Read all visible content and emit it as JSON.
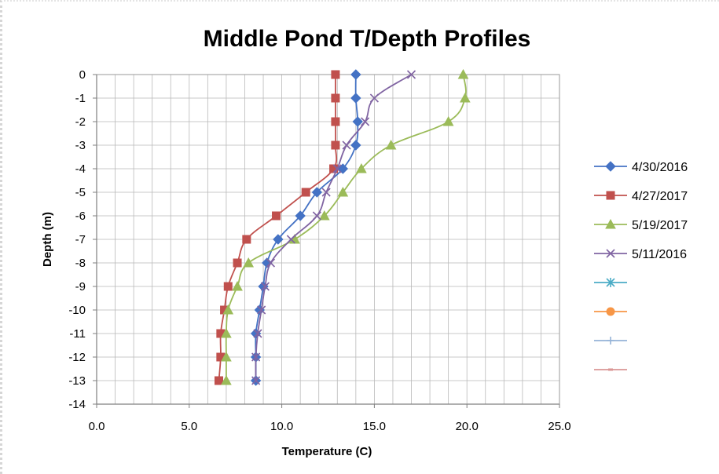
{
  "chart_data": {
    "type": "scatter",
    "title": "Middle Pond T/Depth Profiles",
    "xlabel": "Temperature (C)",
    "ylabel": "Depth (m)",
    "xlim": [
      0,
      25
    ],
    "ylim": [
      -14,
      0
    ],
    "x_ticks": [
      "0.0",
      "5.0",
      "10.0",
      "15.0",
      "20.0",
      "25.0"
    ],
    "y_ticks": [
      "0",
      "-1",
      "-2",
      "-3",
      "-4",
      "-5",
      "-6",
      "-7",
      "-8",
      "-9",
      "-10",
      "-11",
      "-12",
      "-13",
      "-14"
    ],
    "grid": true,
    "legend_position": "right",
    "series": [
      {
        "name": "4/30/2016",
        "color": "#4472c4",
        "marker": "diamond",
        "x": [
          14.0,
          14.0,
          14.1,
          14.0,
          13.3,
          11.9,
          11.0,
          9.8,
          9.2,
          9.0,
          8.8,
          8.6,
          8.6,
          8.6
        ],
        "y": [
          0,
          -1,
          -2,
          -3,
          -4,
          -5,
          -6,
          -7,
          -8,
          -9,
          -10,
          -11,
          -12,
          -13
        ]
      },
      {
        "name": "4/27/2017",
        "color": "#c0504d",
        "marker": "square",
        "x": [
          12.9,
          12.9,
          12.9,
          12.9,
          12.8,
          11.3,
          9.7,
          8.1,
          7.6,
          7.1,
          6.9,
          6.7,
          6.7,
          6.6
        ],
        "y": [
          0,
          -1,
          -2,
          -3,
          -4,
          -5,
          -6,
          -7,
          -8,
          -9,
          -10,
          -11,
          -12,
          -13
        ]
      },
      {
        "name": "5/19/2017",
        "color": "#9bbb59",
        "marker": "triangle",
        "x": [
          19.8,
          19.9,
          19.0,
          15.9,
          14.3,
          13.3,
          12.3,
          10.7,
          8.2,
          7.6,
          7.1,
          7.0,
          7.0,
          7.0
        ],
        "y": [
          0,
          -1,
          -2,
          -3,
          -4,
          -5,
          -6,
          -7,
          -8,
          -9,
          -10,
          -11,
          -12,
          -13
        ]
      },
      {
        "name": "5/11/2016",
        "color": "#8064a2",
        "marker": "x",
        "x": [
          17.0,
          15.0,
          14.5,
          13.5,
          13.0,
          12.4,
          11.9,
          10.5,
          9.4,
          9.1,
          8.9,
          8.7,
          8.6,
          8.6
        ],
        "y": [
          0,
          -1,
          -2,
          -3,
          -4,
          -5,
          -6,
          -7,
          -8,
          -9,
          -10,
          -11,
          -12,
          -13
        ]
      }
    ],
    "empty_legend_entries": [
      {
        "color": "#4bacc6",
        "marker": "asterisk"
      },
      {
        "color": "#f79646",
        "marker": "circle"
      },
      {
        "color": "#95b3d7",
        "marker": "plus"
      },
      {
        "color": "#da9694",
        "marker": "dash"
      }
    ]
  }
}
